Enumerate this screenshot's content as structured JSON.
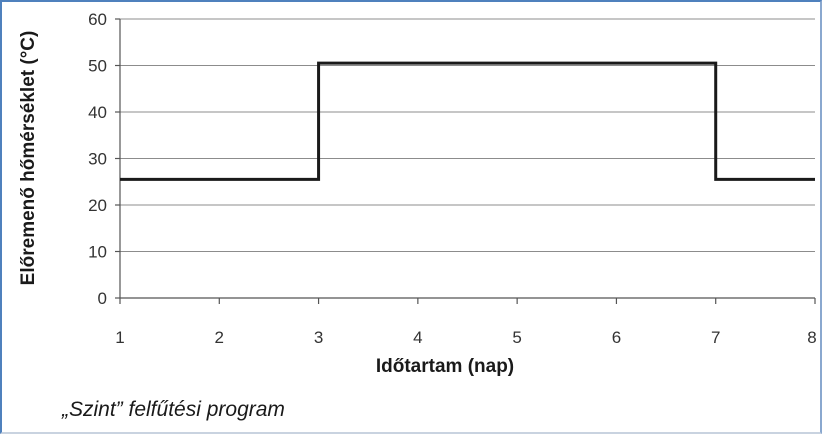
{
  "chart_data": {
    "type": "line",
    "step": true,
    "xlabel": "Időtartam (nap)",
    "ylabel": "Előremenő hőmérséklet (°C)",
    "xlim": [
      1,
      8
    ],
    "ylim": [
      0,
      60
    ],
    "xticks": [
      1,
      2,
      3,
      4,
      5,
      6,
      7,
      8
    ],
    "yticks": [
      0,
      10,
      20,
      30,
      40,
      50,
      60
    ],
    "grid": "horizontal",
    "series": [
      {
        "x": [
          1,
          3,
          3,
          7,
          7,
          8
        ],
        "y": [
          25.5,
          25.5,
          50.5,
          50.5,
          25.5,
          25.5
        ]
      }
    ]
  },
  "caption": "„Szint” felfűtési program",
  "colors": {
    "line": "#1a1a1a",
    "grid": "#8c8c8c",
    "axis": "#555555",
    "frame": "#4f81bd"
  }
}
